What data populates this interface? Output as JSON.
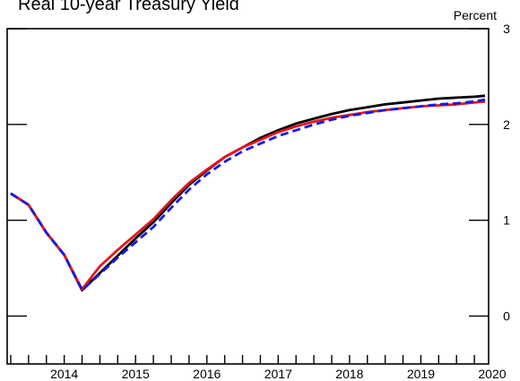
{
  "chart_data": {
    "type": "line",
    "title": "Real 10-year Treasury Yield",
    "unit_label": "Percent",
    "ylim": [
      -0.5,
      3.0
    ],
    "yticks": [
      0,
      1,
      2,
      3
    ],
    "xlim": [
      2013.7,
      2020.45
    ],
    "xtick_labels": [
      "2014",
      "2015",
      "2016",
      "2017",
      "2018",
      "2019",
      "2020"
    ],
    "series": [
      {
        "color": "#000000",
        "dash": "solid",
        "x": [
          2013.75,
          2014.0,
          2014.25,
          2014.5,
          2014.75,
          2015.0,
          2015.25,
          2015.5,
          2015.75,
          2016.0,
          2016.25,
          2016.5,
          2016.75,
          2017.0,
          2017.25,
          2017.5,
          2017.75,
          2018.0,
          2018.25,
          2018.5,
          2018.75,
          2019.0,
          2019.25,
          2019.5,
          2019.75,
          2020.0,
          2020.25,
          2020.4
        ],
        "y": [
          1.28,
          1.16,
          0.87,
          0.64,
          0.27,
          0.45,
          0.63,
          0.81,
          0.98,
          1.18,
          1.37,
          1.52,
          1.66,
          1.76,
          1.86,
          1.94,
          2.01,
          2.06,
          2.11,
          2.15,
          2.18,
          2.21,
          2.23,
          2.25,
          2.27,
          2.28,
          2.29,
          2.3
        ]
      },
      {
        "color": "#e8141c",
        "dash": "solid",
        "x": [
          2013.75,
          2014.0,
          2014.25,
          2014.5,
          2014.75,
          2015.0,
          2015.25,
          2015.5,
          2015.75,
          2016.0,
          2016.25,
          2016.5,
          2016.75,
          2017.0,
          2017.25,
          2017.5,
          2017.75,
          2018.0,
          2018.25,
          2018.5,
          2018.75,
          2019.0,
          2019.25,
          2019.5,
          2019.75,
          2020.0,
          2020.25,
          2020.4
        ],
        "y": [
          1.28,
          1.16,
          0.87,
          0.64,
          0.28,
          0.52,
          0.69,
          0.85,
          1.01,
          1.21,
          1.39,
          1.53,
          1.66,
          1.76,
          1.84,
          1.92,
          1.98,
          2.03,
          2.07,
          2.1,
          2.13,
          2.15,
          2.17,
          2.19,
          2.2,
          2.21,
          2.23,
          2.24
        ]
      },
      {
        "color": "#1a1ae0",
        "dash": "dashed",
        "x": [
          2013.75,
          2014.0,
          2014.25,
          2014.5,
          2014.75,
          2015.0,
          2015.25,
          2015.5,
          2015.75,
          2016.0,
          2016.25,
          2016.5,
          2016.75,
          2017.0,
          2017.25,
          2017.5,
          2017.75,
          2018.0,
          2018.25,
          2018.5,
          2018.75,
          2019.0,
          2019.25,
          2019.5,
          2019.75,
          2020.0,
          2020.25,
          2020.4
        ],
        "y": [
          1.28,
          1.16,
          0.87,
          0.64,
          0.27,
          0.44,
          0.61,
          0.77,
          0.93,
          1.13,
          1.32,
          1.48,
          1.61,
          1.72,
          1.8,
          1.88,
          1.94,
          2.0,
          2.05,
          2.09,
          2.12,
          2.15,
          2.17,
          2.19,
          2.21,
          2.22,
          2.24,
          2.26
        ]
      }
    ]
  }
}
